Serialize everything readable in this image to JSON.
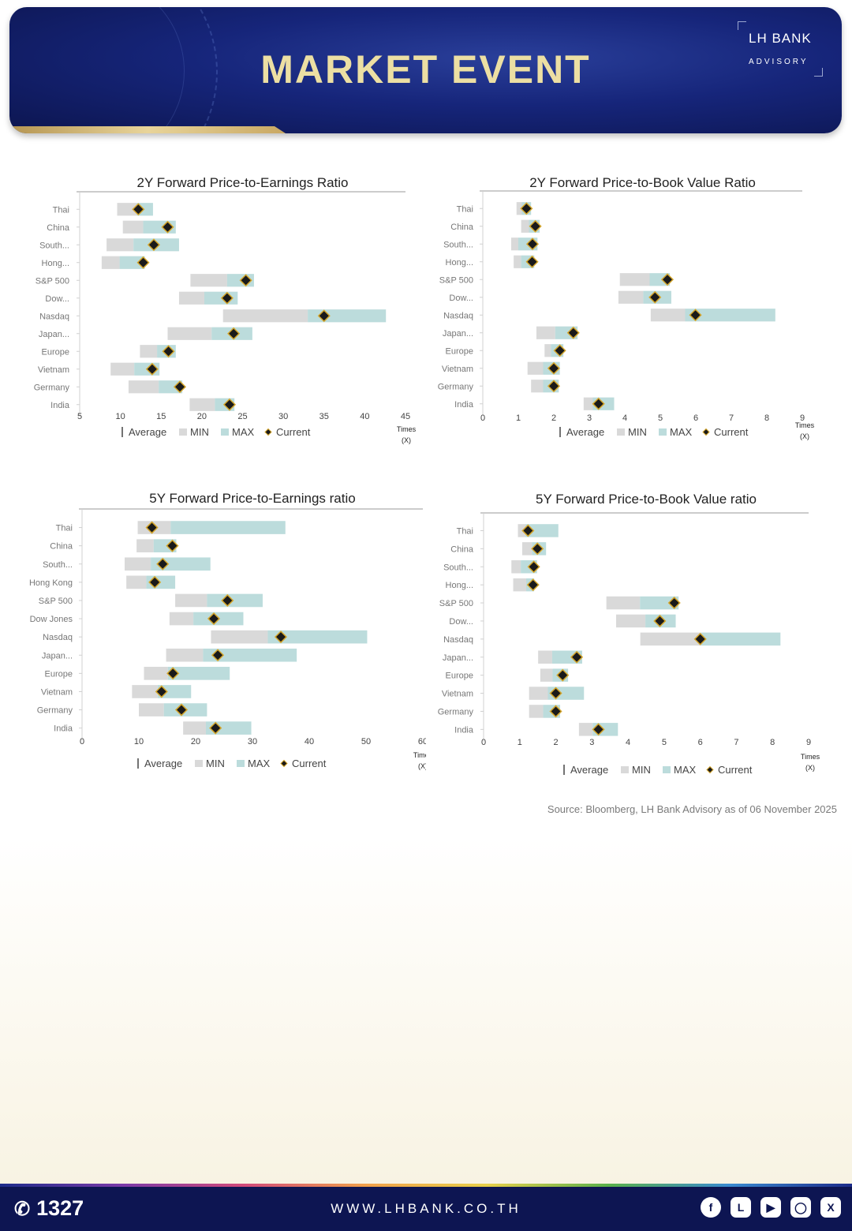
{
  "header": {
    "title": "MARKET  EVENT",
    "logo_line1": "LH BANK",
    "logo_line2": "ADVISORY"
  },
  "legend": {
    "average": "Average",
    "min": "MIN",
    "max": "MAX",
    "current": "Current"
  },
  "axis_unit": {
    "line1": "Times",
    "line2": "(X)"
  },
  "colors": {
    "min_bar": "#d9d9d9",
    "max_bar": "#bcdcdc",
    "marker_fill": "#1a1a1a",
    "marker_stroke": "#d4a52a",
    "header_title": "#ecdfa3",
    "footer_bg": "#0d1552"
  },
  "source": "Source: Bloomberg,  LH Bank Advisory  as of 06 November 2025",
  "footer": {
    "phone": "1327",
    "website": "WWW.LHBANK.CO.TH",
    "socials": [
      "facebook-icon",
      "line-icon",
      "youtube-icon",
      "instagram-icon",
      "x-icon"
    ]
  },
  "chart_data": [
    {
      "type": "bar",
      "title": "2Y Forward Price-to-Earnings Ratio",
      "categories": [
        "Thai",
        "China",
        "South...",
        "Hong...",
        "S&P 500",
        "Dow...",
        "Nasdaq",
        "Japan...",
        "Europe",
        "Vietnam",
        "Germany",
        "India"
      ],
      "xlim": [
        5,
        45
      ],
      "xticks": [
        5,
        10,
        15,
        20,
        25,
        30,
        35,
        40,
        45
      ],
      "series": [
        {
          "name": "MIN",
          "values": [
            9.6,
            10.3,
            8.3,
            7.7,
            18.6,
            17.2,
            22.6,
            15.8,
            12.4,
            8.8,
            11.0,
            18.5
          ]
        },
        {
          "name": "Average",
          "values": [
            12.0,
            12.8,
            11.6,
            9.9,
            23.1,
            20.3,
            33.0,
            21.2,
            14.5,
            11.7,
            14.7,
            21.6
          ]
        },
        {
          "name": "MAX",
          "values": [
            14.0,
            16.8,
            17.2,
            13.0,
            26.4,
            24.4,
            42.6,
            26.2,
            16.8,
            14.8,
            17.6,
            24.0
          ]
        },
        {
          "name": "Current",
          "values": [
            12.2,
            15.8,
            14.1,
            12.8,
            25.4,
            23.1,
            35.0,
            23.9,
            15.9,
            13.9,
            17.3,
            23.4
          ]
        }
      ]
    },
    {
      "type": "bar",
      "title": "2Y Forward Price-to-Book Value Ratio",
      "categories": [
        "Thai",
        "China",
        "South...",
        "Hong...",
        "S&P 500",
        "Dow...",
        "Nasdaq",
        "Japan...",
        "Europe",
        "Vietnam",
        "Germany",
        "India"
      ],
      "xlim": [
        0,
        9
      ],
      "xticks": [
        0,
        1,
        2,
        3,
        4,
        5,
        6,
        7,
        8,
        9
      ],
      "series": [
        {
          "name": "MIN",
          "values": [
            0.95,
            1.08,
            0.8,
            0.87,
            3.86,
            3.82,
            4.73,
            1.51,
            1.74,
            1.26,
            1.36,
            2.84
          ]
        },
        {
          "name": "Average",
          "values": [
            1.1,
            1.3,
            1.0,
            1.08,
            4.7,
            4.52,
            5.7,
            2.04,
            1.92,
            1.7,
            1.7,
            3.1
          ]
        },
        {
          "name": "MAX",
          "values": [
            1.36,
            1.6,
            1.54,
            1.45,
            5.27,
            5.31,
            8.24,
            2.67,
            2.27,
            2.17,
            2.14,
            3.7
          ]
        },
        {
          "name": "Current",
          "values": [
            1.23,
            1.48,
            1.4,
            1.39,
            5.2,
            4.85,
            5.99,
            2.55,
            2.17,
            2.0,
            2.0,
            3.26
          ]
        }
      ]
    },
    {
      "type": "bar",
      "title": "5Y Forward Price-to-Earnings ratio",
      "categories": [
        "Thai",
        "China",
        "South...",
        "Hong Kong",
        "S&P 500",
        "Dow Jones",
        "Nasdaq",
        "Japan...",
        "Europe",
        "Vietnam",
        "Germany",
        "India"
      ],
      "xlim": [
        0,
        60
      ],
      "xticks": [
        0,
        10,
        20,
        30,
        40,
        50,
        60
      ],
      "series": [
        {
          "name": "MIN",
          "values": [
            9.8,
            9.6,
            7.5,
            7.8,
            16.4,
            15.4,
            22.7,
            14.8,
            10.9,
            8.8,
            10.0,
            17.8
          ]
        },
        {
          "name": "Average",
          "values": [
            15.6,
            12.6,
            12.1,
            11.3,
            22.0,
            19.6,
            32.7,
            21.3,
            15.1,
            13.3,
            14.4,
            21.8
          ]
        },
        {
          "name": "MAX",
          "values": [
            35.8,
            16.6,
            22.6,
            16.4,
            31.8,
            28.4,
            50.2,
            37.8,
            26.0,
            19.2,
            22.0,
            29.8
          ]
        },
        {
          "name": "Current",
          "values": [
            12.3,
            15.9,
            14.2,
            12.8,
            25.6,
            23.2,
            35.0,
            23.9,
            16.0,
            14.0,
            17.5,
            23.5
          ]
        }
      ]
    },
    {
      "type": "bar",
      "title": "5Y Forward Price-to-Book Value ratio",
      "categories": [
        "Thai",
        "China",
        "South...",
        "Hong...",
        "S&P 500",
        "Dow...",
        "Nasdaq",
        "Japan...",
        "Europe",
        "Vietnam",
        "Germany",
        "India"
      ],
      "xlim": [
        0,
        9
      ],
      "xticks": [
        0,
        1,
        2,
        3,
        4,
        5,
        6,
        7,
        8,
        9
      ],
      "series": [
        {
          "name": "MIN",
          "values": [
            0.95,
            1.07,
            0.77,
            0.82,
            3.4,
            3.67,
            4.34,
            1.51,
            1.57,
            1.26,
            1.26,
            2.64
          ]
        },
        {
          "name": "Average",
          "values": [
            1.16,
            1.34,
            1.03,
            1.18,
            4.33,
            4.48,
            6.02,
            1.9,
            1.91,
            1.78,
            1.65,
            3.02
          ]
        },
        {
          "name": "MAX",
          "values": [
            2.07,
            1.73,
            1.48,
            1.4,
            5.4,
            5.32,
            8.22,
            2.73,
            2.34,
            2.78,
            2.12,
            3.72
          ]
        },
        {
          "name": "Current",
          "values": [
            1.23,
            1.49,
            1.39,
            1.37,
            5.28,
            4.88,
            6.0,
            2.58,
            2.19,
            2.0,
            2.0,
            3.18
          ]
        }
      ]
    }
  ]
}
